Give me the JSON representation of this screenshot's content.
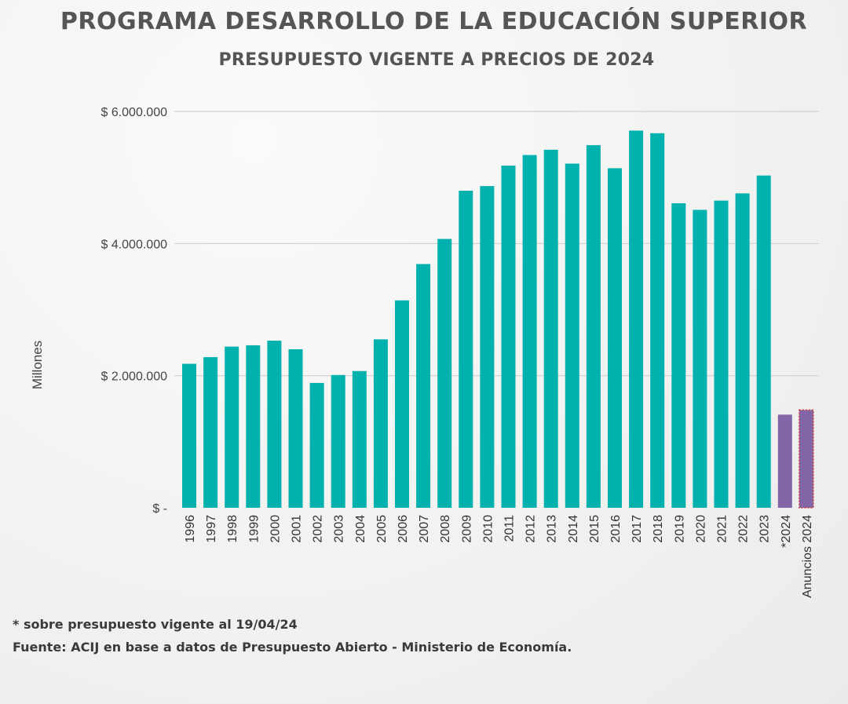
{
  "title": "PROGRAMA DESARROLLO DE LA EDUCACIÓN SUPERIOR",
  "subtitle": "PRESUPUESTO VIGENTE A PRECIOS DE  2024",
  "footnote": "* sobre presupuesto vigente al 19/04/24",
  "source": "Fuente: ACIJ en base a datos de Presupuesto Abierto - Ministerio de Economía.",
  "colors": {
    "bar": "#00b1ae",
    "highlight_bar": "#8266a8",
    "dotted_border": "#d23a3a",
    "grid": "#cfcfcf",
    "text": "#444444"
  },
  "chart_data": {
    "type": "bar",
    "title": "PROGRAMA DESARROLLO DE LA EDUCACIÓN SUPERIOR",
    "subtitle": "PRESUPUESTO VIGENTE A PRECIOS DE  2024",
    "ylabel": "Millones",
    "xlabel": "",
    "ylim": [
      0,
      6000000
    ],
    "y_ticks": [
      {
        "value": 0,
        "label": "$ -"
      },
      {
        "value": 2000000,
        "label": "$ 2.000.000"
      },
      {
        "value": 4000000,
        "label": "$ 4.000.000"
      },
      {
        "value": 6000000,
        "label": "$ 6.000.000"
      }
    ],
    "grid": true,
    "categories": [
      "1996",
      "1997",
      "1998",
      "1999",
      "2000",
      "2001",
      "2002",
      "2003",
      "2004",
      "2005",
      "2006",
      "2007",
      "2008",
      "2009",
      "2010",
      "2011",
      "2012",
      "2013",
      "2014",
      "2015",
      "2016",
      "2017",
      "2018",
      "2019",
      "2020",
      "2021",
      "2022",
      "2023",
      "*2024",
      "Anuncios 2024"
    ],
    "values": [
      2180000,
      2280000,
      2440000,
      2460000,
      2530000,
      2400000,
      1890000,
      2010000,
      2070000,
      2550000,
      3140000,
      3690000,
      4070000,
      4800000,
      4870000,
      5180000,
      5340000,
      5420000,
      5210000,
      5490000,
      5140000,
      5710000,
      5670000,
      4610000,
      4510000,
      4650000,
      4760000,
      5030000,
      1410000,
      1480000
    ],
    "bar_styles": [
      "teal",
      "teal",
      "teal",
      "teal",
      "teal",
      "teal",
      "teal",
      "teal",
      "teal",
      "teal",
      "teal",
      "teal",
      "teal",
      "teal",
      "teal",
      "teal",
      "teal",
      "teal",
      "teal",
      "teal",
      "teal",
      "teal",
      "teal",
      "teal",
      "teal",
      "teal",
      "teal",
      "teal",
      "purple",
      "purple-dotted"
    ]
  }
}
